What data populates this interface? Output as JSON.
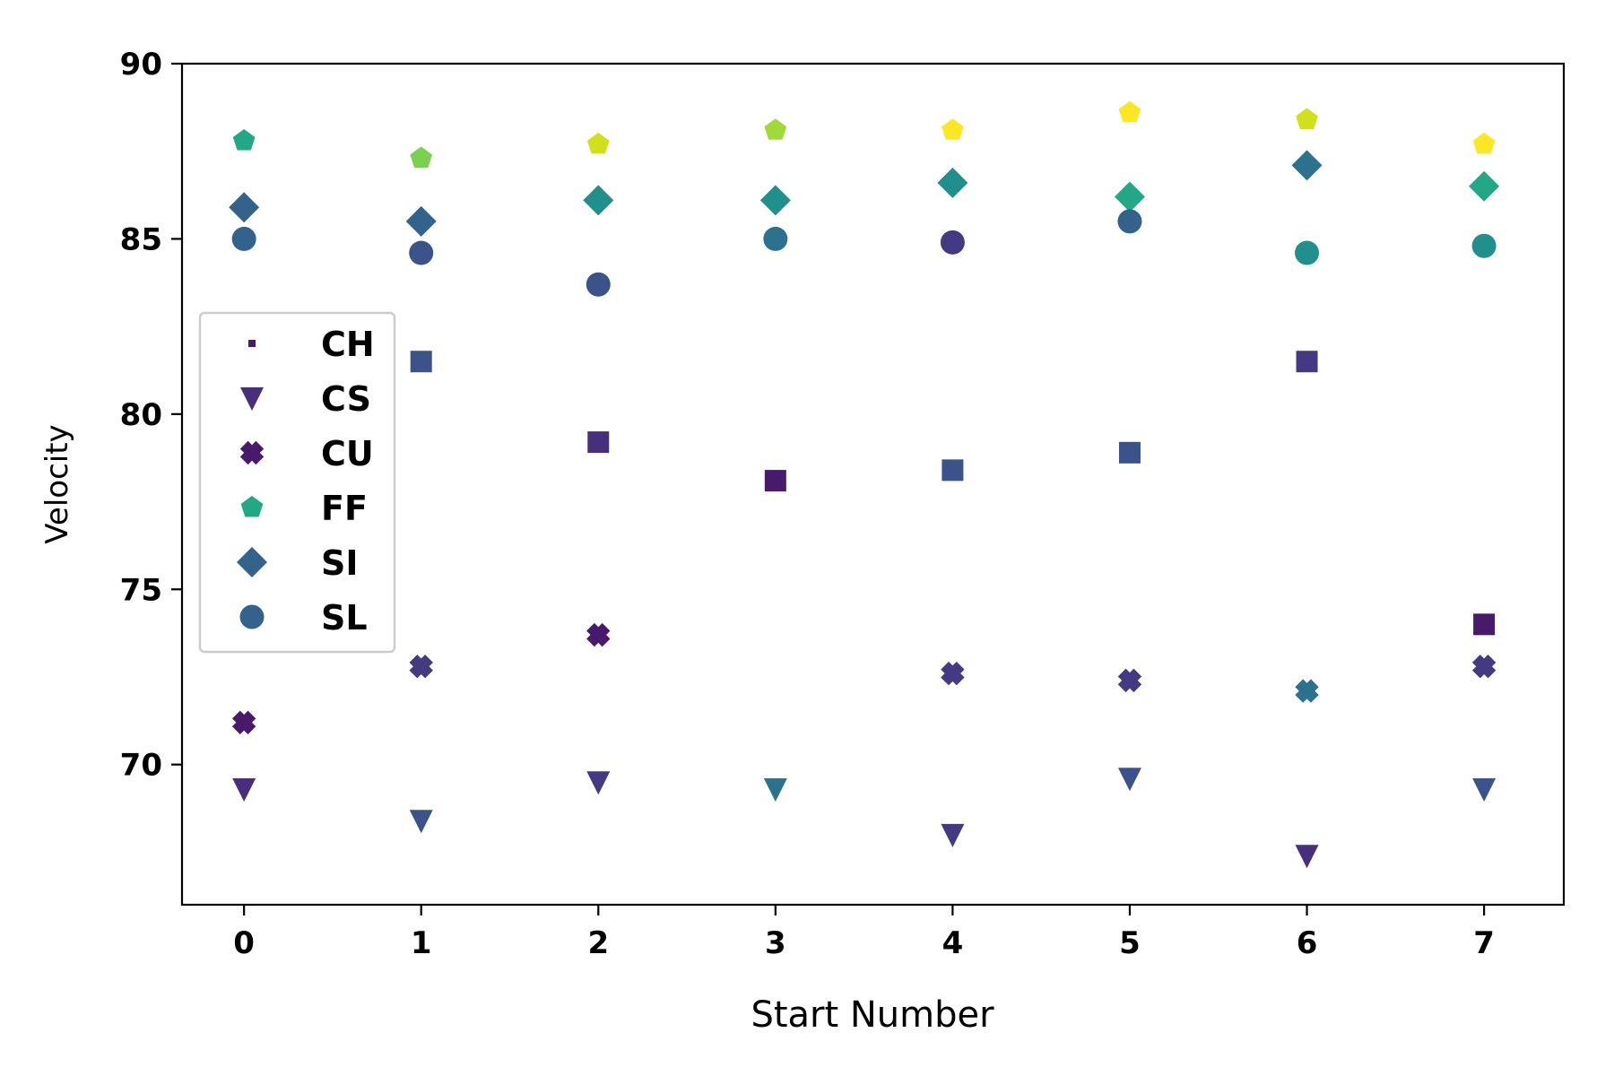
{
  "chart_data": {
    "type": "scatter",
    "xlabel": "Start Number",
    "ylabel": "Velocity",
    "xlim": [
      -0.35,
      7.45
    ],
    "ylim": [
      66,
      90
    ],
    "x_ticks": [
      0,
      1,
      2,
      3,
      4,
      5,
      6,
      7
    ],
    "y_ticks": [
      70,
      75,
      80,
      85,
      90
    ],
    "legend_position": "center-left",
    "colormap": "viridis",
    "colors": {
      "dark_purple": "#481a6c",
      "indigo": "#472f7d",
      "violet_blue": "#443983",
      "slate_blue": "#3b528b",
      "steel_blue": "#33638d",
      "blue_teal": "#2c728e",
      "teal": "#21908d",
      "green_teal": "#22a884",
      "light_green": "#7ad151",
      "lime": "#a0da39",
      "yellow_green": "#d0e11c",
      "yellow": "#fde725"
    },
    "series": [
      {
        "name": "CH",
        "marker": "point",
        "legend_color": "#481a6c",
        "points": [
          {
            "x": 1,
            "y": 81.5,
            "color": "#3b528b"
          },
          {
            "x": 2,
            "y": 79.2,
            "color": "#472f7d"
          },
          {
            "x": 3,
            "y": 78.1,
            "color": "#481a6c"
          },
          {
            "x": 4,
            "y": 78.4,
            "color": "#3b528b"
          },
          {
            "x": 5,
            "y": 78.9,
            "color": "#3b528b"
          },
          {
            "x": 6,
            "y": 81.5,
            "color": "#443983"
          },
          {
            "x": 7,
            "y": 74.0,
            "color": "#481a6c"
          }
        ]
      },
      {
        "name": "CS",
        "marker": "triangle-down",
        "legend_color": "#472f7d",
        "points": [
          {
            "x": 0,
            "y": 69.3,
            "color": "#472f7d"
          },
          {
            "x": 1,
            "y": 68.4,
            "color": "#3b528b"
          },
          {
            "x": 2,
            "y": 69.5,
            "color": "#443983"
          },
          {
            "x": 3,
            "y": 69.3,
            "color": "#2c728e"
          },
          {
            "x": 4,
            "y": 68.0,
            "color": "#443983"
          },
          {
            "x": 5,
            "y": 69.6,
            "color": "#3b528b"
          },
          {
            "x": 6,
            "y": 67.4,
            "color": "#472f7d"
          },
          {
            "x": 7,
            "y": 69.3,
            "color": "#3b528b"
          }
        ]
      },
      {
        "name": "CU",
        "marker": "x-filled",
        "legend_color": "#481a6c",
        "points": [
          {
            "x": 0,
            "y": 71.2,
            "color": "#481a6c"
          },
          {
            "x": 1,
            "y": 72.8,
            "color": "#443983"
          },
          {
            "x": 2,
            "y": 73.7,
            "color": "#481a6c"
          },
          {
            "x": 4,
            "y": 72.6,
            "color": "#443983"
          },
          {
            "x": 5,
            "y": 72.4,
            "color": "#443983"
          },
          {
            "x": 6,
            "y": 72.1,
            "color": "#2c728e"
          },
          {
            "x": 7,
            "y": 72.8,
            "color": "#443983"
          }
        ]
      },
      {
        "name": "FF",
        "marker": "pentagon",
        "legend_color": "#22a884",
        "points": [
          {
            "x": 0,
            "y": 87.8,
            "color": "#22a884"
          },
          {
            "x": 1,
            "y": 87.3,
            "color": "#7ad151"
          },
          {
            "x": 2,
            "y": 87.7,
            "color": "#d0e11c"
          },
          {
            "x": 3,
            "y": 88.1,
            "color": "#a0da39"
          },
          {
            "x": 4,
            "y": 88.1,
            "color": "#fde725"
          },
          {
            "x": 5,
            "y": 88.6,
            "color": "#fde725"
          },
          {
            "x": 6,
            "y": 88.4,
            "color": "#d0e11c"
          },
          {
            "x": 7,
            "y": 87.7,
            "color": "#fde725"
          }
        ]
      },
      {
        "name": "SI",
        "marker": "diamond",
        "legend_color": "#33638d",
        "points": [
          {
            "x": 0,
            "y": 85.9,
            "color": "#33638d"
          },
          {
            "x": 1,
            "y": 85.5,
            "color": "#33638d"
          },
          {
            "x": 2,
            "y": 86.1,
            "color": "#21908d"
          },
          {
            "x": 3,
            "y": 86.1,
            "color": "#21908d"
          },
          {
            "x": 4,
            "y": 86.6,
            "color": "#21908d"
          },
          {
            "x": 5,
            "y": 86.2,
            "color": "#22a884"
          },
          {
            "x": 6,
            "y": 87.1,
            "color": "#2c728e"
          },
          {
            "x": 7,
            "y": 86.5,
            "color": "#22a884"
          }
        ]
      },
      {
        "name": "SL",
        "marker": "circle",
        "legend_color": "#33638d",
        "points": [
          {
            "x": 0,
            "y": 85.0,
            "color": "#33638d"
          },
          {
            "x": 1,
            "y": 84.6,
            "color": "#3b528b"
          },
          {
            "x": 2,
            "y": 83.7,
            "color": "#3b528b"
          },
          {
            "x": 3,
            "y": 85.0,
            "color": "#2c728e"
          },
          {
            "x": 4,
            "y": 84.9,
            "color": "#443983"
          },
          {
            "x": 5,
            "y": 85.5,
            "color": "#33638d"
          },
          {
            "x": 6,
            "y": 84.6,
            "color": "#21908d"
          },
          {
            "x": 7,
            "y": 84.8,
            "color": "#21908d"
          }
        ]
      }
    ]
  }
}
